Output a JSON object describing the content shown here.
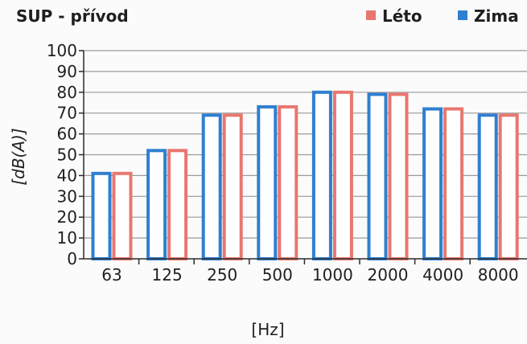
{
  "chart_data": {
    "type": "bar",
    "title": "SUP - přívod",
    "xlabel": "[Hz]",
    "ylabel": "[dB(A)]",
    "categories": [
      "63",
      "125",
      "250",
      "500",
      "1000",
      "2000",
      "4000",
      "8000"
    ],
    "ylim": [
      0,
      100
    ],
    "yticks": [
      0,
      10,
      20,
      30,
      40,
      50,
      60,
      70,
      80,
      90,
      100
    ],
    "grid": true,
    "legend_position": "top-right",
    "series": [
      {
        "name": "Zima",
        "color": "#2f7fd0",
        "values": [
          41,
          52,
          69,
          73,
          80,
          79,
          72,
          69
        ]
      },
      {
        "name": "Léto",
        "color": "#e8776f",
        "values": [
          41,
          52,
          69,
          73,
          80,
          79,
          72,
          69
        ]
      }
    ],
    "legend_order": [
      "Léto",
      "Zima"
    ]
  }
}
